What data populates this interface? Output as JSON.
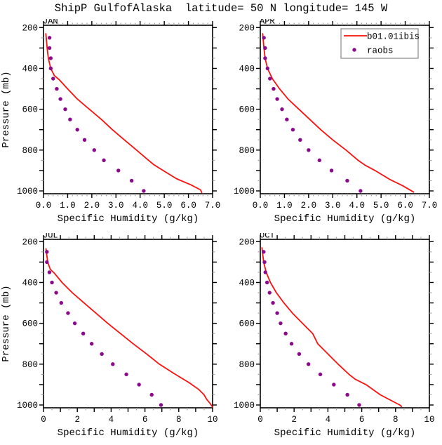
{
  "title": "ShipP GulfofAlaska  latitude= 50 N longitude= 145 W",
  "colors": {
    "model_line": "#fb100c",
    "obs_dot": "#8b0a8b",
    "axis": "#000000",
    "minor_tick": "#a3a3a3",
    "legend_border": "#999999",
    "background": "#ffffff"
  },
  "legend": {
    "entries": [
      {
        "label": "b01.01ibis",
        "kind": "line"
      },
      {
        "label": "raobs",
        "kind": "dot"
      }
    ]
  },
  "chart_data": [
    {
      "type": "line",
      "label": "JAN",
      "xlabel": "Specific Humidity (g/kg)",
      "ylabel": "Pressure (mb)",
      "show_ylabel": true,
      "show_legend": false,
      "xlim": [
        0,
        7
      ],
      "ylim_mb": [
        200,
        1000
      ],
      "y_inverted": true,
      "x_tick_labels": [
        "0.0",
        "1.0",
        "2.0",
        "3.0",
        "4.0",
        "5.0",
        "6.0",
        "7.0"
      ],
      "x_label_values": [
        0,
        1,
        2,
        3,
        4,
        5,
        6,
        7
      ],
      "x_major_step": 1,
      "x_minor_step": 0.2,
      "y_tick_labels": [
        "200",
        "400",
        "600",
        "800",
        "1000"
      ],
      "y_label_values": [
        200,
        400,
        600,
        800,
        1000
      ],
      "y_major_step": 100,
      "y_minor_step": 50,
      "series": [
        {
          "name": "b01.01ibis",
          "kind": "line",
          "color_key": "model_line",
          "points": [
            [
              0.1,
              230
            ],
            [
              0.15,
              300
            ],
            [
              0.2,
              350
            ],
            [
              0.3,
              400
            ],
            [
              0.45,
              435
            ],
            [
              0.65,
              455
            ],
            [
              1.0,
              500
            ],
            [
              1.4,
              550
            ],
            [
              1.9,
              600
            ],
            [
              2.4,
              650
            ],
            [
              2.85,
              700
            ],
            [
              3.35,
              750
            ],
            [
              3.85,
              800
            ],
            [
              4.3,
              845
            ],
            [
              4.55,
              870
            ],
            [
              4.95,
              900
            ],
            [
              5.5,
              940
            ],
            [
              6.1,
              970
            ],
            [
              6.5,
              995
            ],
            [
              6.55,
              1008
            ]
          ]
        },
        {
          "name": "raobs",
          "kind": "scatter",
          "color_key": "obs_dot",
          "points": [
            [
              0.25,
              250
            ],
            [
              0.25,
              300
            ],
            [
              0.3,
              350
            ],
            [
              0.3,
              400
            ],
            [
              0.4,
              450
            ],
            [
              0.55,
              500
            ],
            [
              0.7,
              550
            ],
            [
              0.9,
              600
            ],
            [
              1.1,
              650
            ],
            [
              1.4,
              700
            ],
            [
              1.7,
              750
            ],
            [
              2.1,
              800
            ],
            [
              2.5,
              850
            ],
            [
              3.1,
              900
            ],
            [
              3.65,
              950
            ],
            [
              4.15,
              1000
            ]
          ]
        }
      ]
    },
    {
      "type": "line",
      "label": "APR",
      "xlabel": "Specific Humidity (g/kg)",
      "ylabel": "Pressure (mb)",
      "show_ylabel": false,
      "show_legend": true,
      "xlim": [
        0,
        7
      ],
      "ylim_mb": [
        200,
        1000
      ],
      "y_inverted": true,
      "x_tick_labels": [
        "0.0",
        "1.0",
        "2.0",
        "3.0",
        "4.0",
        "5.0",
        "6.0",
        "7.0"
      ],
      "x_label_values": [
        0,
        1,
        2,
        3,
        4,
        5,
        6,
        7
      ],
      "x_major_step": 1,
      "x_minor_step": 0.2,
      "y_tick_labels": [
        "200",
        "400",
        "600",
        "800",
        "1000"
      ],
      "y_label_values": [
        200,
        400,
        600,
        800,
        1000
      ],
      "y_major_step": 100,
      "y_minor_step": 50,
      "series": [
        {
          "name": "b01.01ibis",
          "kind": "line",
          "color_key": "model_line",
          "points": [
            [
              0.1,
              230
            ],
            [
              0.15,
              300
            ],
            [
              0.2,
              350
            ],
            [
              0.3,
              400
            ],
            [
              0.5,
              450
            ],
            [
              0.8,
              500
            ],
            [
              1.15,
              550
            ],
            [
              1.6,
              600
            ],
            [
              2.05,
              650
            ],
            [
              2.5,
              700
            ],
            [
              3.0,
              750
            ],
            [
              3.55,
              800
            ],
            [
              4.05,
              850
            ],
            [
              4.35,
              875
            ],
            [
              4.75,
              900
            ],
            [
              5.35,
              943
            ],
            [
              5.9,
              975
            ],
            [
              6.35,
              1006
            ]
          ]
        },
        {
          "name": "raobs",
          "kind": "scatter",
          "color_key": "obs_dot",
          "points": [
            [
              0.15,
              250
            ],
            [
              0.2,
              300
            ],
            [
              0.2,
              350
            ],
            [
              0.3,
              400
            ],
            [
              0.4,
              450
            ],
            [
              0.55,
              500
            ],
            [
              0.7,
              550
            ],
            [
              0.9,
              600
            ],
            [
              1.1,
              650
            ],
            [
              1.35,
              700
            ],
            [
              1.65,
              750
            ],
            [
              2.0,
              800
            ],
            [
              2.45,
              850
            ],
            [
              2.95,
              900
            ],
            [
              3.6,
              950
            ],
            [
              4.15,
              1000
            ]
          ]
        }
      ]
    },
    {
      "type": "line",
      "label": "JUL",
      "xlabel": "Specific Humidity (g/kg)",
      "ylabel": "Pressure (mb)",
      "show_ylabel": true,
      "show_legend": false,
      "xlim": [
        0,
        10
      ],
      "ylim_mb": [
        200,
        1000
      ],
      "y_inverted": true,
      "x_tick_labels": [
        "0",
        "2",
        "4",
        "6",
        "8",
        "10"
      ],
      "x_label_values": [
        0,
        2,
        4,
        6,
        8,
        10
      ],
      "x_major_step": 1,
      "x_minor_step": 0.5,
      "y_tick_labels": [
        "200",
        "400",
        "600",
        "800",
        "1000"
      ],
      "y_label_values": [
        200,
        400,
        600,
        800,
        1000
      ],
      "y_major_step": 100,
      "y_minor_step": 50,
      "series": [
        {
          "name": "b01.01ibis",
          "kind": "line",
          "color_key": "model_line",
          "points": [
            [
              0.15,
              235
            ],
            [
              0.25,
              300
            ],
            [
              0.4,
              335
            ],
            [
              0.65,
              355
            ],
            [
              1.1,
              400
            ],
            [
              1.7,
              450
            ],
            [
              2.4,
              500
            ],
            [
              3.1,
              550
            ],
            [
              3.8,
              600
            ],
            [
              4.55,
              650
            ],
            [
              5.3,
              700
            ],
            [
              6.1,
              750
            ],
            [
              6.85,
              800
            ],
            [
              7.7,
              845
            ],
            [
              8.6,
              890
            ],
            [
              9.2,
              925
            ],
            [
              9.5,
              950
            ],
            [
              9.65,
              972
            ],
            [
              9.85,
              992
            ],
            [
              10.0,
              1010
            ]
          ]
        },
        {
          "name": "raobs",
          "kind": "scatter",
          "color_key": "obs_dot",
          "points": [
            [
              0.2,
              250
            ],
            [
              0.2,
              300
            ],
            [
              0.35,
              350
            ],
            [
              0.5,
              400
            ],
            [
              0.75,
              450
            ],
            [
              1.05,
              500
            ],
            [
              1.45,
              550
            ],
            [
              1.85,
              600
            ],
            [
              2.35,
              650
            ],
            [
              2.85,
              700
            ],
            [
              3.45,
              750
            ],
            [
              4.1,
              800
            ],
            [
              4.9,
              850
            ],
            [
              5.65,
              900
            ],
            [
              6.4,
              950
            ],
            [
              6.95,
              1000
            ]
          ]
        }
      ]
    },
    {
      "type": "line",
      "label": "OCT",
      "xlabel": "Specific Humidity (g/kg)",
      "ylabel": "Pressure (mb)",
      "show_ylabel": false,
      "show_legend": false,
      "xlim": [
        0,
        10
      ],
      "ylim_mb": [
        200,
        1000
      ],
      "y_inverted": true,
      "x_tick_labels": [
        "0",
        "2",
        "4",
        "6",
        "8",
        "10"
      ],
      "x_label_values": [
        0,
        2,
        4,
        6,
        8,
        10
      ],
      "x_major_step": 1,
      "x_minor_step": 0.5,
      "y_tick_labels": [
        "200",
        "400",
        "600",
        "800",
        "1000"
      ],
      "y_label_values": [
        200,
        400,
        600,
        800,
        1000
      ],
      "y_major_step": 100,
      "y_minor_step": 50,
      "series": [
        {
          "name": "b01.01ibis",
          "kind": "line",
          "color_key": "model_line",
          "points": [
            [
              0.1,
              230
            ],
            [
              0.2,
              300
            ],
            [
              0.35,
              350
            ],
            [
              0.6,
              400
            ],
            [
              0.95,
              450
            ],
            [
              1.4,
              500
            ],
            [
              1.9,
              550
            ],
            [
              2.5,
              600
            ],
            [
              3.1,
              650
            ],
            [
              3.4,
              700
            ],
            [
              4.0,
              750
            ],
            [
              4.6,
              800
            ],
            [
              5.25,
              850
            ],
            [
              5.6,
              873
            ],
            [
              6.25,
              900
            ],
            [
              7.1,
              950
            ],
            [
              8.25,
              1000
            ],
            [
              8.35,
              1007
            ]
          ]
        },
        {
          "name": "raobs",
          "kind": "scatter",
          "color_key": "obs_dot",
          "points": [
            [
              0.2,
              250
            ],
            [
              0.25,
              300
            ],
            [
              0.3,
              350
            ],
            [
              0.4,
              400
            ],
            [
              0.55,
              450
            ],
            [
              0.75,
              500
            ],
            [
              1.0,
              550
            ],
            [
              1.2,
              600
            ],
            [
              1.5,
              650
            ],
            [
              1.85,
              700
            ],
            [
              2.3,
              750
            ],
            [
              2.85,
              800
            ],
            [
              3.55,
              850
            ],
            [
              4.35,
              900
            ],
            [
              5.15,
              950
            ],
            [
              5.85,
              1000
            ]
          ]
        }
      ]
    }
  ]
}
